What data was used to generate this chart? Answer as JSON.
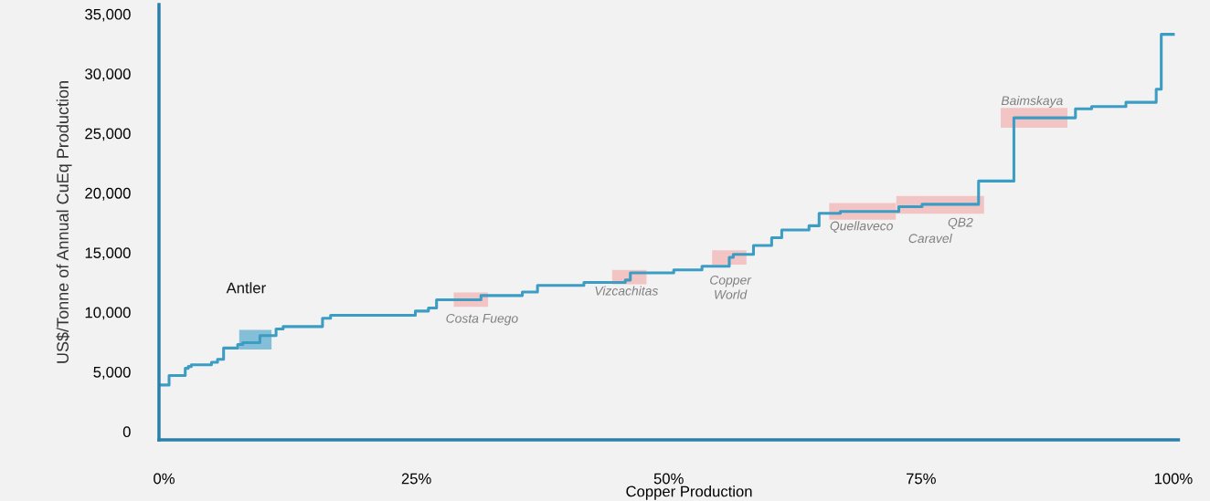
{
  "chart_data": {
    "type": "step",
    "xlabel": "Copper Production",
    "ylabel": "US$/Tonne of Annual CuEq Production",
    "x": [
      -0.5,
      0.5,
      2.1,
      2.4,
      2.7,
      4.7,
      5.3,
      5.9,
      7.3,
      7.8,
      9.5,
      11.1,
      11.8,
      15.7,
      16.5,
      24.9,
      26.2,
      27.0,
      31.4,
      35.5,
      37.0,
      41.6,
      45.7,
      46.2,
      50.5,
      53.3,
      56.0,
      56.4,
      58.4,
      60.2,
      61.2,
      63.9,
      64.9,
      67.0,
      72.8,
      75.1,
      80.7,
      84.2,
      90.3,
      91.9,
      95.3,
      98.3,
      98.8,
      100
    ],
    "series": [
      {
        "color": "#3b9cc4",
        "values": [
          3900,
          4700,
          5300,
          5450,
          5600,
          5800,
          6050,
          7000,
          7300,
          7450,
          8050,
          8600,
          8800,
          9500,
          9750,
          10100,
          10350,
          11050,
          11400,
          11700,
          12250,
          12500,
          12700,
          13300,
          13550,
          13850,
          14600,
          14850,
          15600,
          16250,
          16900,
          17250,
          18300,
          18450,
          18850,
          19050,
          21000,
          26300,
          27050,
          27250,
          27600,
          28700,
          33300,
          33300
        ]
      }
    ],
    "xlim": [
      -0.5,
      100.5
    ],
    "ylim": [
      -700,
      35800
    ],
    "xticks": [
      {
        "value": 0,
        "label": "0%"
      },
      {
        "value": 25,
        "label": "25%"
      },
      {
        "value": 50,
        "label": "50%"
      },
      {
        "value": 75,
        "label": "75%"
      },
      {
        "value": 100,
        "label": "100%"
      }
    ],
    "yticks": [
      {
        "value": 0,
        "label": "0"
      },
      {
        "value": 5000,
        "label": "5,000"
      },
      {
        "value": 10000,
        "label": "10,000"
      },
      {
        "value": 15000,
        "label": "15,000"
      },
      {
        "value": 20000,
        "label": "20,000"
      },
      {
        "value": 25000,
        "label": "25,000"
      },
      {
        "value": 30000,
        "label": "30,000"
      },
      {
        "value": 35000,
        "label": "35,000"
      }
    ],
    "grid": false,
    "annotations": [
      "Antler",
      {
        "text": "Costa Fuego",
        "x": 30.4,
        "y": 11050
      },
      {
        "text": "Vizcachitas",
        "x": 46.1,
        "y": 12950
      },
      {
        "text": "Copper\nWorld",
        "x": 56.0,
        "y": 14600
      },
      {
        "text": "Quellaveco",
        "x": 69.2,
        "y": 18450
      },
      {
        "text": "Caravel",
        "x": 76.9,
        "y": 19000
      },
      {
        "text": "QB2",
        "x": 78.9,
        "y": 19050
      },
      {
        "text": "Baimskaya",
        "x": 86.2,
        "y": 26300
      }
    ]
  }
}
